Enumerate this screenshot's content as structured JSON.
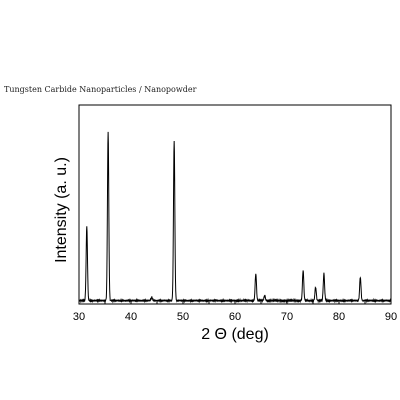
{
  "caption": "Tungsten Carbide Nanoparticles / Nanopowder",
  "chart_data": {
    "type": "line",
    "xlabel": "2 Θ (deg)",
    "ylabel": "Intensity (a. u.)",
    "xlim": [
      30,
      90
    ],
    "ylim": [
      0,
      100
    ],
    "x_ticks": [
      30,
      40,
      50,
      60,
      70,
      80,
      90
    ],
    "baseline": 2,
    "peaks": [
      {
        "x": 31.5,
        "height": 44
      },
      {
        "x": 35.6,
        "height": 100
      },
      {
        "x": 44.0,
        "height": 2
      },
      {
        "x": 48.3,
        "height": 95
      },
      {
        "x": 64.0,
        "height": 16
      },
      {
        "x": 65.7,
        "height": 3
      },
      {
        "x": 73.1,
        "height": 18
      },
      {
        "x": 75.5,
        "height": 8
      },
      {
        "x": 77.1,
        "height": 16
      },
      {
        "x": 84.1,
        "height": 14
      }
    ],
    "line_color": "#000000",
    "grid": false
  }
}
